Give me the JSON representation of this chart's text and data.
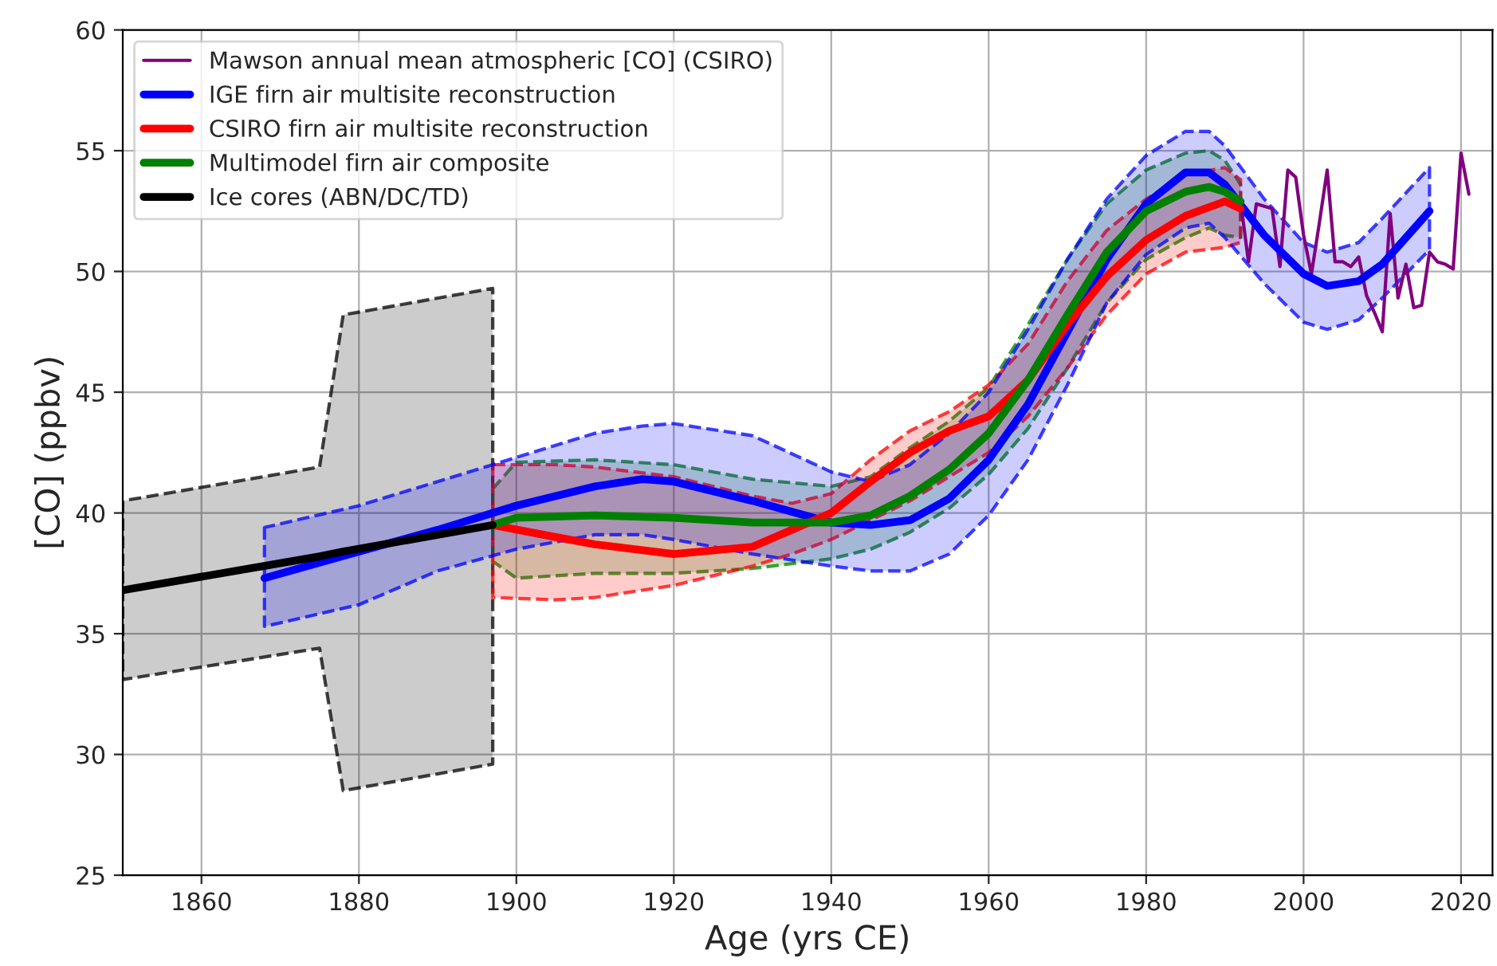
{
  "chart_data": {
    "type": "line",
    "xlabel": "Age (yrs CE)",
    "ylabel": "[CO] (ppbv)",
    "xlim": [
      1850,
      2024
    ],
    "ylim": [
      25,
      60
    ],
    "xticks": [
      1860,
      1880,
      1900,
      1920,
      1940,
      1960,
      1980,
      2000,
      2020
    ],
    "yticks": [
      25,
      30,
      35,
      40,
      45,
      50,
      55,
      60
    ],
    "grid": true,
    "legend": "top left",
    "line_style": "solid",
    "marker": "none",
    "series": [
      {
        "name": "Mawson annual mean atmospheric [CO] (CSIRO)",
        "color": "#800080",
        "x": [
          1992,
          1993,
          1994,
          1995,
          1996,
          1997,
          1998,
          1999,
          2000,
          2001,
          2002,
          2003,
          2004,
          2005,
          2006,
          2007,
          2008,
          2009,
          2010,
          2011,
          2012,
          2013,
          2014,
          2015,
          2016,
          2017,
          2018,
          2019,
          2020,
          2021
        ],
        "values": [
          52.9,
          50.4,
          52.8,
          52.7,
          52.6,
          50.2,
          54.2,
          53.9,
          51.5,
          49.9,
          52.0,
          54.2,
          50.4,
          50.4,
          50.2,
          50.6,
          49.0,
          48.3,
          47.5,
          52.4,
          48.9,
          50.3,
          48.5,
          48.6,
          50.8,
          50.4,
          50.3,
          50.1,
          54.9,
          53.2
        ]
      },
      {
        "name": "IGE firn air multisite reconstruction",
        "color": "#0000ff",
        "x": [
          1868,
          1880,
          1890,
          1900,
          1910,
          1916,
          1920,
          1930,
          1940,
          1945,
          1950,
          1955,
          1960,
          1965,
          1970,
          1975,
          1980,
          1985,
          1988,
          1990,
          1995,
          2000,
          2003,
          2007,
          2010,
          2016
        ],
        "values": [
          37.3,
          38.4,
          39.3,
          40.3,
          41.1,
          41.4,
          41.3,
          40.5,
          39.6,
          39.5,
          39.7,
          40.6,
          42.2,
          44.5,
          47.5,
          50.5,
          52.8,
          54.1,
          54.1,
          53.6,
          51.5,
          49.9,
          49.4,
          49.6,
          50.3,
          52.5
        ],
        "upper": [
          39.4,
          40.3,
          41.3,
          42.3,
          43.3,
          43.6,
          43.7,
          43.2,
          41.7,
          41.3,
          42.0,
          43.3,
          45.0,
          47.6,
          50.5,
          53.0,
          54.8,
          55.8,
          55.8,
          55.2,
          53.0,
          51.2,
          50.8,
          51.2,
          52.2,
          54.3
        ],
        "lower": [
          35.3,
          36.2,
          37.6,
          38.5,
          39.1,
          39.1,
          38.9,
          38.3,
          37.8,
          37.6,
          37.6,
          38.3,
          39.9,
          42.2,
          45.3,
          48.7,
          50.7,
          51.8,
          52.0,
          51.4,
          49.5,
          47.9,
          47.6,
          48.0,
          48.9,
          50.9
        ]
      },
      {
        "name": "CSIRO firn air multisite reconstruction",
        "color": "#ff0000",
        "x": [
          1897,
          1905,
          1910,
          1920,
          1930,
          1935,
          1940,
          1945,
          1950,
          1955,
          1960,
          1965,
          1970,
          1975,
          1980,
          1985,
          1990,
          1992
        ],
        "values": [
          39.5,
          39.0,
          38.7,
          38.3,
          38.6,
          39.3,
          40.0,
          41.3,
          42.5,
          43.4,
          44.0,
          45.5,
          47.8,
          49.8,
          51.3,
          52.3,
          52.9,
          52.6
        ],
        "upper": [
          42.0,
          42.0,
          41.9,
          41.5,
          40.7,
          40.4,
          40.8,
          42.2,
          43.4,
          44.2,
          45.3,
          47.0,
          49.6,
          51.7,
          53.0,
          54.0,
          54.3,
          53.8
        ],
        "lower": [
          36.5,
          36.4,
          36.5,
          37.0,
          37.8,
          38.3,
          38.9,
          39.7,
          40.5,
          41.5,
          42.5,
          44.0,
          46.0,
          48.2,
          49.9,
          50.8,
          51.0,
          51.2
        ]
      },
      {
        "name": "Multimodel firn air composite",
        "color": "#008000",
        "x": [
          1897,
          1900,
          1910,
          1920,
          1930,
          1940,
          1945,
          1950,
          1955,
          1960,
          1965,
          1970,
          1975,
          1980,
          1985,
          1988,
          1990,
          1992
        ],
        "values": [
          39.5,
          39.8,
          39.9,
          39.8,
          39.6,
          39.6,
          39.9,
          40.7,
          41.8,
          43.3,
          45.5,
          48.2,
          50.8,
          52.5,
          53.3,
          53.5,
          53.3,
          52.9
        ],
        "upper": [
          41.0,
          42.1,
          42.2,
          42.0,
          41.4,
          41.1,
          41.5,
          42.7,
          43.8,
          45.2,
          47.8,
          50.5,
          52.8,
          54.2,
          54.9,
          55.0,
          54.6,
          53.6
        ],
        "lower": [
          38.0,
          37.3,
          37.5,
          37.5,
          37.7,
          38.1,
          38.5,
          39.2,
          40.2,
          41.6,
          43.5,
          46.0,
          48.7,
          50.5,
          51.4,
          51.8,
          51.5,
          51.4
        ]
      },
      {
        "name": "Ice cores (ABN/DC/TD)",
        "color": "#000000",
        "x": [
          1850,
          1875,
          1878,
          1897
        ],
        "values": [
          36.8,
          38.2,
          38.4,
          39.5
        ],
        "upper": [
          40.5,
          41.9,
          48.2,
          49.3
        ],
        "lower": [
          33.1,
          34.4,
          28.5,
          29.6
        ]
      }
    ]
  }
}
